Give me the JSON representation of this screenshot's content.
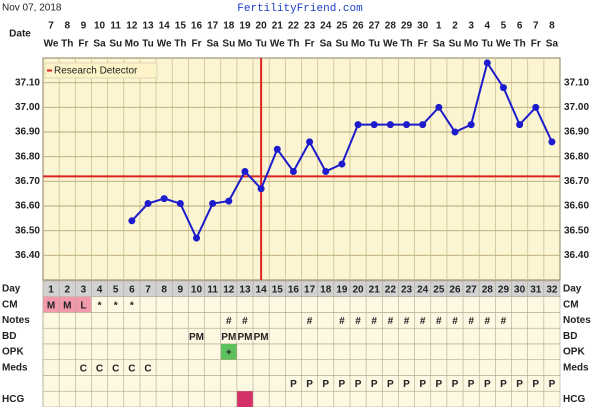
{
  "header": {
    "date": "Nov 07, 2018",
    "site": "FertilityFriend.com",
    "date_label": "Date"
  },
  "chart_data": {
    "type": "line",
    "categories": [
      "7",
      "8",
      "9",
      "10",
      "11",
      "12",
      "13",
      "14",
      "15",
      "16",
      "17",
      "18",
      "19",
      "20",
      "21",
      "22",
      "23",
      "24",
      "25",
      "26",
      "27",
      "28",
      "29",
      "30",
      "1",
      "2",
      "3",
      "4",
      "5",
      "6",
      "7",
      "8"
    ],
    "weekdays": [
      "We",
      "Th",
      "Fr",
      "Sa",
      "Su",
      "Mo",
      "Tu",
      "We",
      "Th",
      "Fr",
      "Sa",
      "Su",
      "Mo",
      "Tu",
      "We",
      "Th",
      "Fr",
      "Sa",
      "Su",
      "Mo",
      "Tu",
      "We",
      "Th",
      "Fr",
      "Sa",
      "Su",
      "Mo",
      "Tu",
      "We",
      "Th",
      "Fr",
      "Sa"
    ],
    "values": [
      null,
      null,
      null,
      null,
      null,
      36.54,
      36.61,
      36.63,
      36.61,
      36.47,
      36.61,
      36.62,
      36.74,
      36.67,
      36.83,
      36.74,
      36.86,
      36.74,
      36.77,
      36.93,
      36.93,
      36.93,
      36.93,
      36.93,
      37.0,
      36.9,
      36.93,
      37.18,
      37.08,
      36.93,
      37.0,
      36.86
    ],
    "color": "#1c1ccc",
    "ylim": [
      36.3,
      37.2
    ],
    "yticks": [
      {
        "value": 36.4,
        "label": "36.40"
      },
      {
        "value": 36.5,
        "label": "36.50"
      },
      {
        "value": 36.6,
        "label": "36.60"
      },
      {
        "value": 36.7,
        "label": "36.70"
      },
      {
        "value": 36.8,
        "label": "36.80"
      },
      {
        "value": 36.9,
        "label": "36.90"
      },
      {
        "value": 37.0,
        "label": "37.00"
      },
      {
        "value": 37.1,
        "label": "37.10"
      }
    ],
    "coverline": 36.72,
    "ovulation_day": 14,
    "line_color": "#dd2222",
    "legend": "Research Detector",
    "grid": true
  },
  "table": {
    "rows": [
      {
        "label": "Day",
        "cells": [
          1,
          2,
          3,
          4,
          5,
          6,
          7,
          8,
          9,
          10,
          11,
          12,
          13,
          14,
          15,
          16,
          17,
          18,
          19,
          20,
          21,
          22,
          23,
          24,
          25,
          26,
          27,
          28,
          29,
          30,
          31,
          32
        ],
        "colors": null
      },
      {
        "label": "CM",
        "cells": [
          "M",
          "M",
          "L",
          "*",
          "*",
          "*",
          null,
          null,
          null,
          null,
          null,
          null,
          null,
          null,
          null,
          null,
          null,
          null,
          null,
          null,
          null,
          null,
          null,
          null,
          null,
          null,
          null,
          null,
          null,
          null,
          null,
          null
        ],
        "colors": [
          "#f29aac",
          "#f29aac",
          "#f29aac",
          null,
          null,
          null,
          null,
          null,
          null,
          null,
          null,
          null,
          null,
          null,
          null,
          null,
          null,
          null,
          null,
          null,
          null,
          null,
          null,
          null,
          null,
          null,
          null,
          null,
          null,
          null,
          null,
          null
        ]
      },
      {
        "label": "Notes",
        "cells": [
          null,
          null,
          null,
          null,
          null,
          null,
          null,
          null,
          null,
          null,
          null,
          "#",
          "#",
          null,
          null,
          null,
          "#",
          null,
          "#",
          "#",
          "#",
          "#",
          "#",
          "#",
          "#",
          "#",
          "#",
          "#",
          "#",
          null,
          null,
          null
        ],
        "colors": null
      },
      {
        "label": "BD",
        "cells": [
          null,
          null,
          null,
          null,
          null,
          null,
          null,
          null,
          null,
          "PM",
          null,
          "PM",
          "PM",
          "PM",
          null,
          null,
          null,
          null,
          null,
          null,
          null,
          null,
          null,
          null,
          null,
          null,
          null,
          null,
          null,
          null,
          null,
          null
        ],
        "colors": null
      },
      {
        "label": "OPK",
        "cells": [
          null,
          null,
          null,
          null,
          null,
          null,
          null,
          null,
          null,
          null,
          null,
          "+",
          null,
          null,
          null,
          null,
          null,
          null,
          null,
          null,
          null,
          null,
          null,
          null,
          null,
          null,
          null,
          null,
          null,
          null,
          null,
          null
        ],
        "colors": [
          null,
          null,
          null,
          null,
          null,
          null,
          null,
          null,
          null,
          null,
          null,
          "#5cc05c",
          null,
          null,
          null,
          null,
          null,
          null,
          null,
          null,
          null,
          null,
          null,
          null,
          null,
          null,
          null,
          null,
          null,
          null,
          null,
          null
        ]
      },
      {
        "label": "Meds",
        "cells": [
          null,
          null,
          "C",
          "C",
          "C",
          "C",
          "C",
          null,
          null,
          null,
          null,
          null,
          null,
          null,
          null,
          null,
          null,
          null,
          null,
          null,
          null,
          null,
          null,
          null,
          null,
          null,
          null,
          null,
          null,
          null,
          null,
          null
        ],
        "colors": null
      },
      {
        "label": null,
        "cells": [
          null,
          null,
          null,
          null,
          null,
          null,
          null,
          null,
          null,
          null,
          null,
          null,
          null,
          null,
          null,
          "P",
          "P",
          "P",
          "P",
          "P",
          "P",
          "P",
          "P",
          "P",
          "P",
          "P",
          "P",
          "P",
          "P",
          "P",
          "P",
          "P"
        ],
        "colors": null
      },
      {
        "label": "HCG",
        "cells": [
          null,
          null,
          null,
          null,
          null,
          null,
          null,
          null,
          null,
          null,
          null,
          null,
          null,
          null,
          null,
          null,
          null,
          null,
          null,
          null,
          null,
          null,
          null,
          null,
          null,
          null,
          null,
          null,
          null,
          null,
          null,
          null
        ],
        "colors": [
          null,
          null,
          null,
          null,
          null,
          null,
          null,
          null,
          null,
          null,
          null,
          null,
          "#d4306a",
          null,
          null,
          null,
          null,
          null,
          null,
          null,
          null,
          null,
          null,
          null,
          null,
          null,
          null,
          null,
          null,
          null,
          null,
          null
        ]
      }
    ]
  }
}
